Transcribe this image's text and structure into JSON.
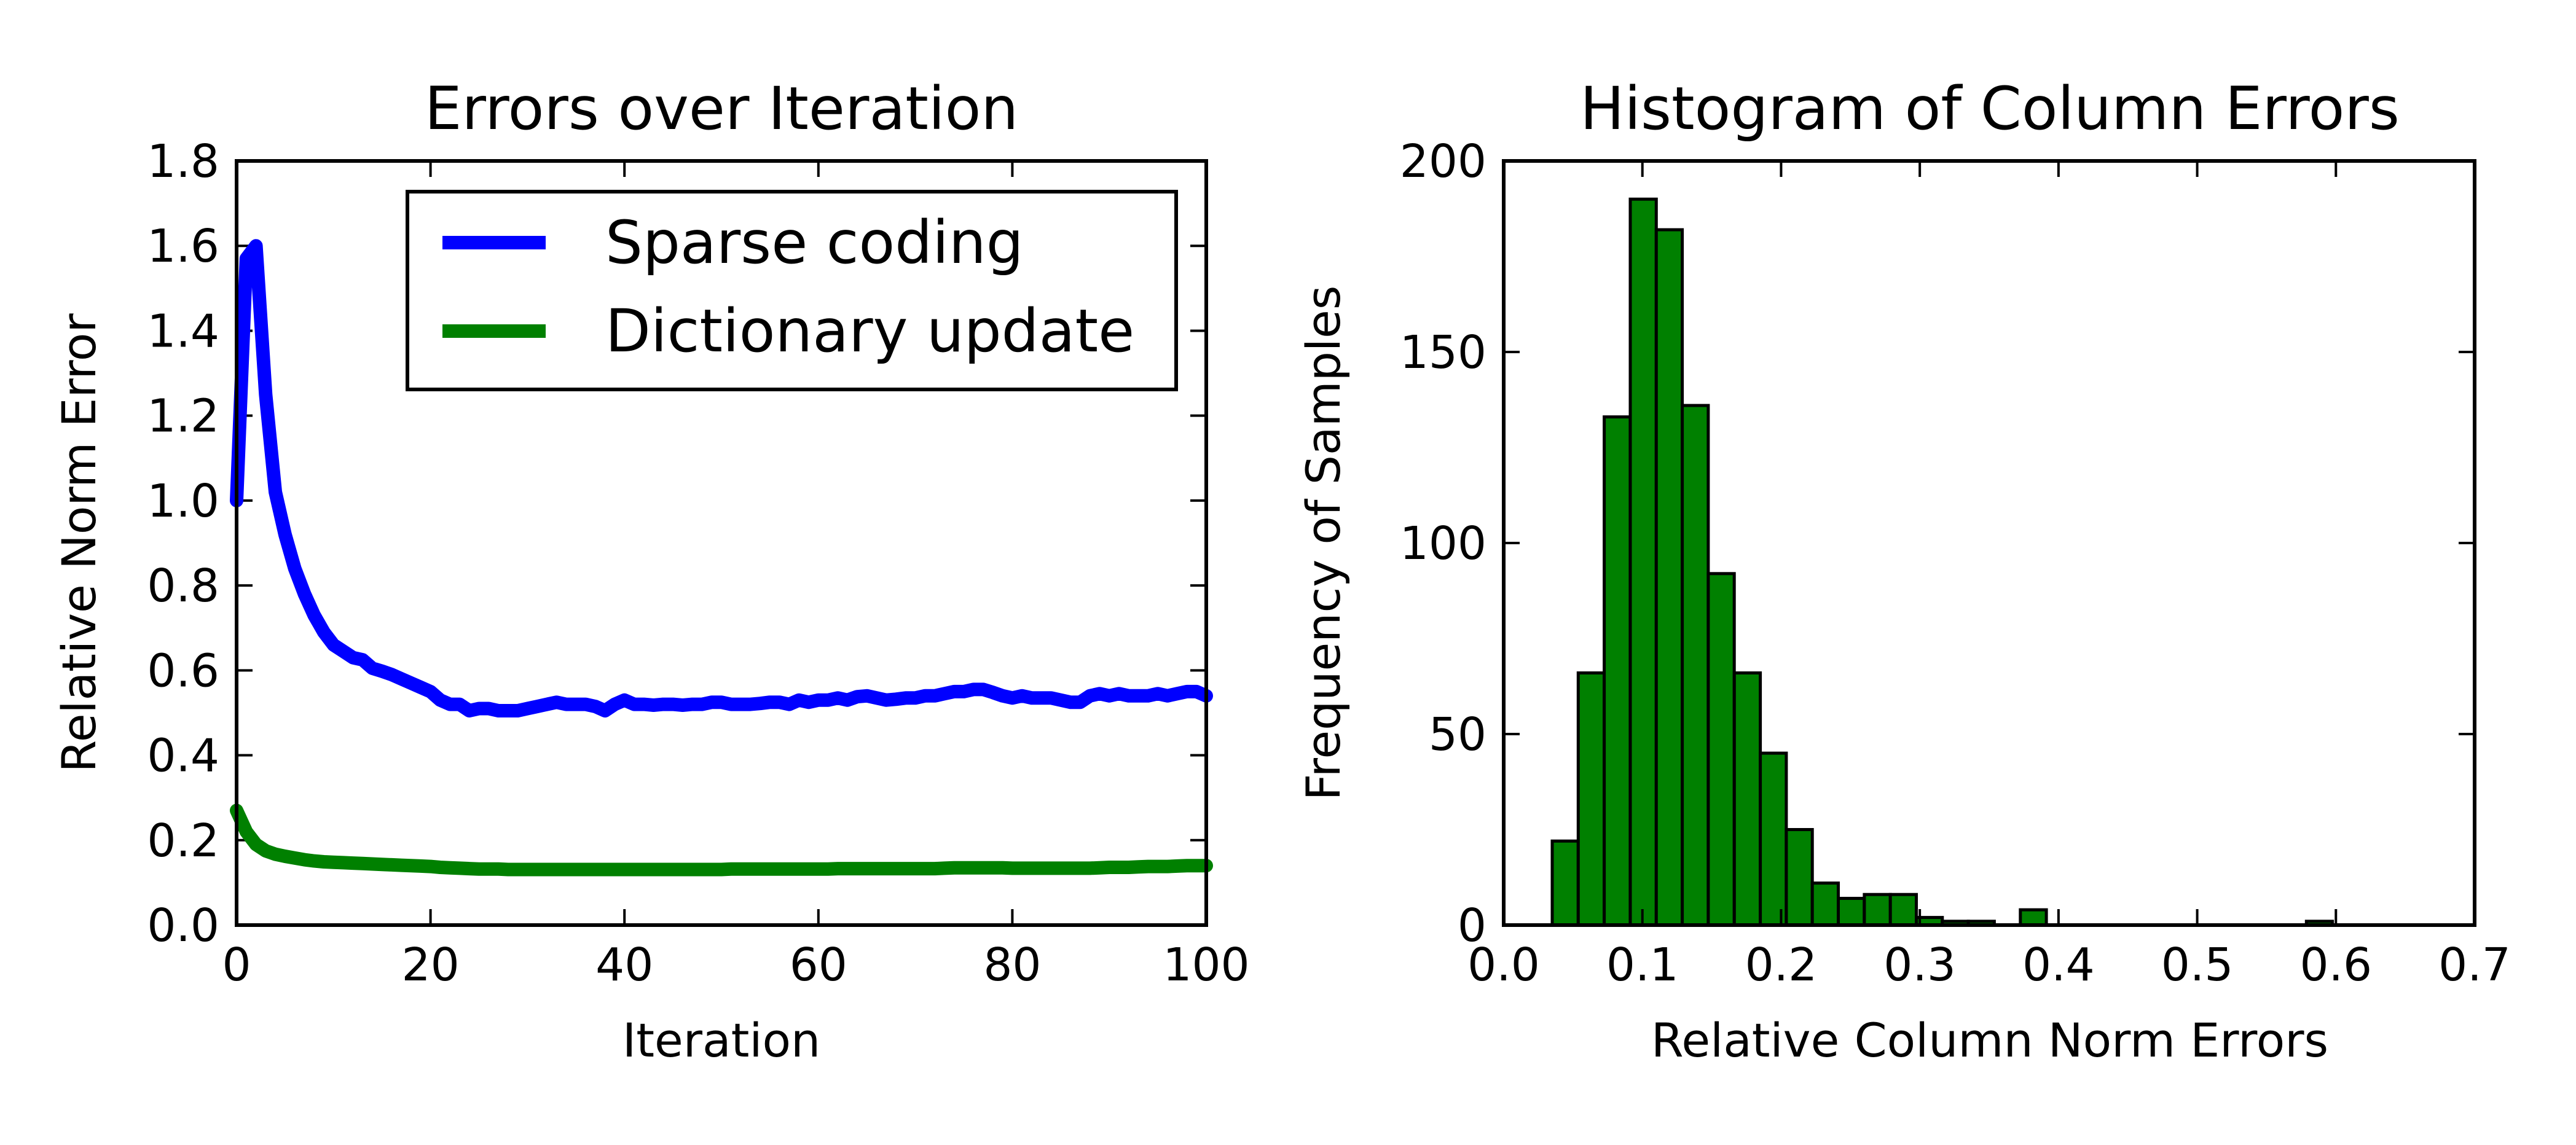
{
  "chart_data": [
    {
      "type": "line",
      "title": "Errors over Iteration",
      "xlabel": "Iteration",
      "ylabel": "Relative Norm Error",
      "xlim": [
        0,
        100
      ],
      "ylim": [
        0.0,
        1.8
      ],
      "xticks": [
        "0",
        "20",
        "40",
        "60",
        "80",
        "100"
      ],
      "yticks": [
        "0.0",
        "0.2",
        "0.4",
        "0.6",
        "0.8",
        "1.0",
        "1.2",
        "1.4",
        "1.6",
        "1.8"
      ],
      "legend": "top-right",
      "grid": false,
      "x": [
        0,
        1,
        2,
        3,
        4,
        5,
        6,
        7,
        8,
        9,
        10,
        11,
        12,
        13,
        14,
        15,
        16,
        17,
        18,
        19,
        20,
        21,
        22,
        23,
        24,
        25,
        26,
        27,
        28,
        29,
        30,
        31,
        32,
        33,
        34,
        35,
        36,
        37,
        38,
        39,
        40,
        41,
        42,
        43,
        44,
        45,
        46,
        47,
        48,
        49,
        50,
        51,
        52,
        53,
        54,
        55,
        56,
        57,
        58,
        59,
        60,
        61,
        62,
        63,
        64,
        65,
        66,
        67,
        68,
        69,
        70,
        71,
        72,
        73,
        74,
        75,
        76,
        77,
        78,
        79,
        80,
        81,
        82,
        83,
        84,
        85,
        86,
        87,
        88,
        89,
        90,
        91,
        92,
        93,
        94,
        95,
        96,
        97,
        98,
        99,
        100
      ],
      "series": [
        {
          "name": "Sparse coding",
          "color": "#0000ff",
          "values": [
            1.0,
            1.57,
            1.6,
            1.25,
            1.02,
            0.92,
            0.84,
            0.78,
            0.73,
            0.69,
            0.66,
            0.645,
            0.63,
            0.625,
            0.605,
            0.598,
            0.59,
            0.58,
            0.57,
            0.56,
            0.55,
            0.53,
            0.52,
            0.52,
            0.505,
            0.51,
            0.51,
            0.505,
            0.505,
            0.505,
            0.51,
            0.515,
            0.52,
            0.525,
            0.52,
            0.52,
            0.52,
            0.515,
            0.505,
            0.52,
            0.53,
            0.52,
            0.52,
            0.518,
            0.52,
            0.52,
            0.518,
            0.52,
            0.52,
            0.525,
            0.525,
            0.52,
            0.52,
            0.52,
            0.522,
            0.525,
            0.525,
            0.52,
            0.53,
            0.525,
            0.53,
            0.53,
            0.535,
            0.53,
            0.538,
            0.54,
            0.535,
            0.53,
            0.532,
            0.535,
            0.535,
            0.54,
            0.54,
            0.545,
            0.55,
            0.55,
            0.555,
            0.555,
            0.548,
            0.54,
            0.535,
            0.54,
            0.535,
            0.535,
            0.535,
            0.53,
            0.525,
            0.525,
            0.54,
            0.545,
            0.54,
            0.545,
            0.54,
            0.54,
            0.54,
            0.545,
            0.54,
            0.545,
            0.55,
            0.55,
            0.54
          ]
        },
        {
          "name": "Dictionary update",
          "color": "#008000",
          "values": [
            0.27,
            0.22,
            0.19,
            0.175,
            0.167,
            0.162,
            0.158,
            0.154,
            0.151,
            0.149,
            0.148,
            0.147,
            0.146,
            0.145,
            0.144,
            0.143,
            0.142,
            0.141,
            0.14,
            0.139,
            0.138,
            0.136,
            0.135,
            0.134,
            0.133,
            0.132,
            0.132,
            0.132,
            0.131,
            0.131,
            0.131,
            0.131,
            0.131,
            0.131,
            0.131,
            0.131,
            0.131,
            0.131,
            0.131,
            0.131,
            0.131,
            0.131,
            0.131,
            0.131,
            0.131,
            0.131,
            0.131,
            0.131,
            0.131,
            0.131,
            0.131,
            0.132,
            0.132,
            0.132,
            0.132,
            0.132,
            0.132,
            0.132,
            0.132,
            0.132,
            0.132,
            0.132,
            0.133,
            0.133,
            0.133,
            0.133,
            0.133,
            0.133,
            0.133,
            0.133,
            0.133,
            0.133,
            0.133,
            0.134,
            0.135,
            0.135,
            0.135,
            0.135,
            0.135,
            0.135,
            0.134,
            0.134,
            0.134,
            0.134,
            0.134,
            0.134,
            0.134,
            0.134,
            0.134,
            0.135,
            0.136,
            0.136,
            0.136,
            0.137,
            0.138,
            0.138,
            0.138,
            0.139,
            0.14,
            0.14,
            0.14
          ]
        }
      ]
    },
    {
      "type": "bar",
      "title": "Histogram of Column Errors",
      "xlabel": "Relative Column Norm Errors",
      "ylabel": "Frequency of Samples",
      "xlim": [
        0.0,
        0.7
      ],
      "ylim": [
        0,
        200
      ],
      "xticks": [
        "0.0",
        "0.1",
        "0.2",
        "0.3",
        "0.4",
        "0.5",
        "0.6",
        "0.7"
      ],
      "yticks": [
        "0",
        "50",
        "100",
        "150",
        "200"
      ],
      "grid": false,
      "bar_color": "#008000",
      "bin_width": 0.01875,
      "bin_starts": [
        0.035,
        0.05375,
        0.0725,
        0.09125,
        0.11,
        0.12875,
        0.1475,
        0.16625,
        0.185,
        0.20375,
        0.2225,
        0.24125,
        0.26,
        0.27875,
        0.2975,
        0.31625,
        0.335,
        0.35375,
        0.3725,
        0.39125,
        0.41,
        0.42875,
        0.4475,
        0.46625,
        0.485,
        0.50375,
        0.5225,
        0.54125,
        0.56,
        0.57875,
        0.5975
      ],
      "values": [
        22,
        66,
        133,
        190,
        182,
        136,
        92,
        66,
        45,
        25,
        11,
        7,
        8,
        8,
        2,
        1,
        1,
        0,
        4,
        0,
        0,
        0,
        0,
        0,
        0,
        0,
        0,
        0,
        0,
        1,
        0
      ]
    }
  ]
}
